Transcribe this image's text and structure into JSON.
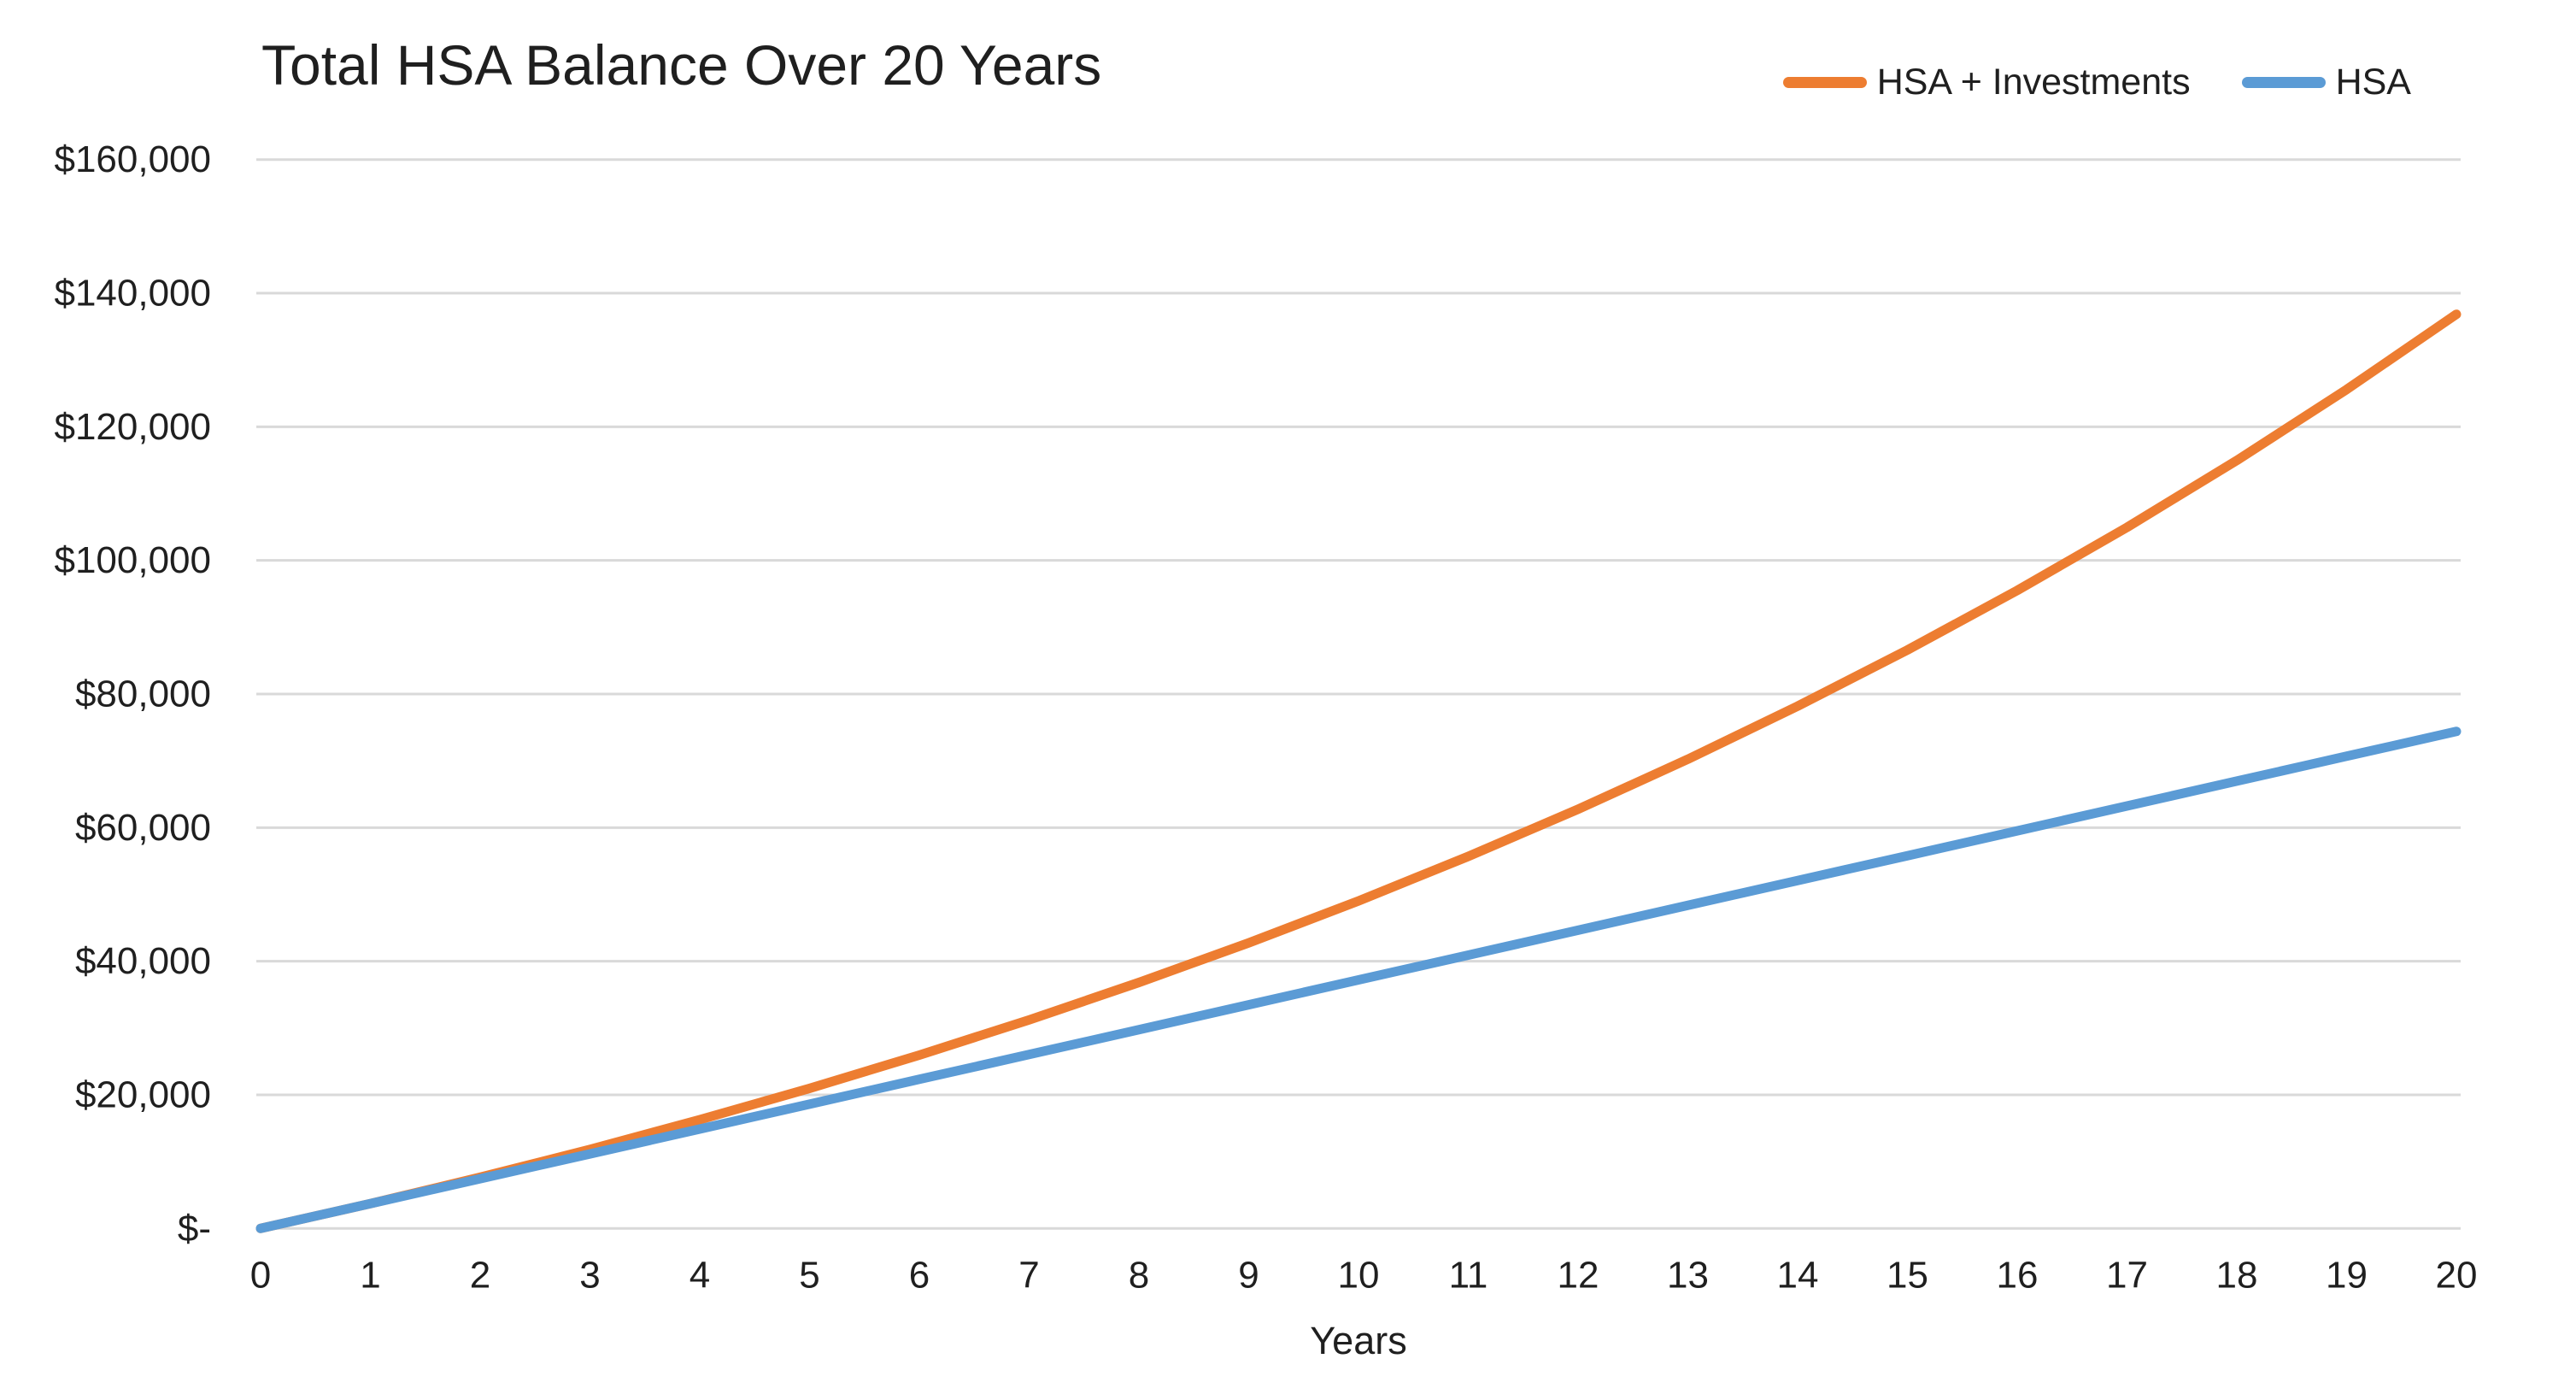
{
  "title": "Total HSA Balance Over 20 Years",
  "axis": {
    "x_title": "Years"
  },
  "colors": {
    "hsa_investments": "#ED7D31",
    "hsa": "#5B9BD5",
    "gridline": "#D9D9D9",
    "text": "#1F1F1F",
    "background": "#FFFFFF"
  },
  "chart_data": {
    "type": "line",
    "title": "Total HSA Balance Over 20 Years",
    "xlabel": "Years",
    "ylabel": "",
    "x": [
      0,
      1,
      2,
      3,
      4,
      5,
      6,
      7,
      8,
      9,
      10,
      11,
      12,
      13,
      14,
      15,
      16,
      17,
      18,
      19,
      20
    ],
    "x_tick_labels": [
      "0",
      "1",
      "2",
      "3",
      "4",
      "5",
      "6",
      "7",
      "8",
      "9",
      "10",
      "11",
      "12",
      "13",
      "14",
      "15",
      "16",
      "17",
      "18",
      "19",
      "20"
    ],
    "series": [
      {
        "name": "HSA + Investments",
        "color": "#ED7D31",
        "values": [
          0,
          3720,
          7660,
          11840,
          16270,
          20970,
          25950,
          31220,
          36820,
          42750,
          49030,
          55690,
          62760,
          70240,
          78180,
          86590,
          95500,
          104950,
          114970,
          125590,
          136840
        ]
      },
      {
        "name": "HSA",
        "color": "#5B9BD5",
        "values": [
          0,
          3720,
          7440,
          11160,
          14880,
          18600,
          22320,
          26040,
          29760,
          33480,
          37200,
          40920,
          44640,
          48360,
          52080,
          55800,
          59520,
          63240,
          66960,
          70680,
          74400
        ]
      }
    ],
    "y_ticks": {
      "values": [
        0,
        20000,
        40000,
        60000,
        80000,
        100000,
        120000,
        140000,
        160000
      ],
      "labels": [
        "$-",
        "$20,000",
        "$40,000",
        "$60,000",
        "$80,000",
        "$100,000",
        "$120,000",
        "$140,000",
        "$160,000"
      ]
    },
    "xlim": [
      0,
      20
    ],
    "ylim": [
      0,
      160000
    ],
    "grid": "horizontal",
    "legend_position": "top-right",
    "line_width": 11
  }
}
